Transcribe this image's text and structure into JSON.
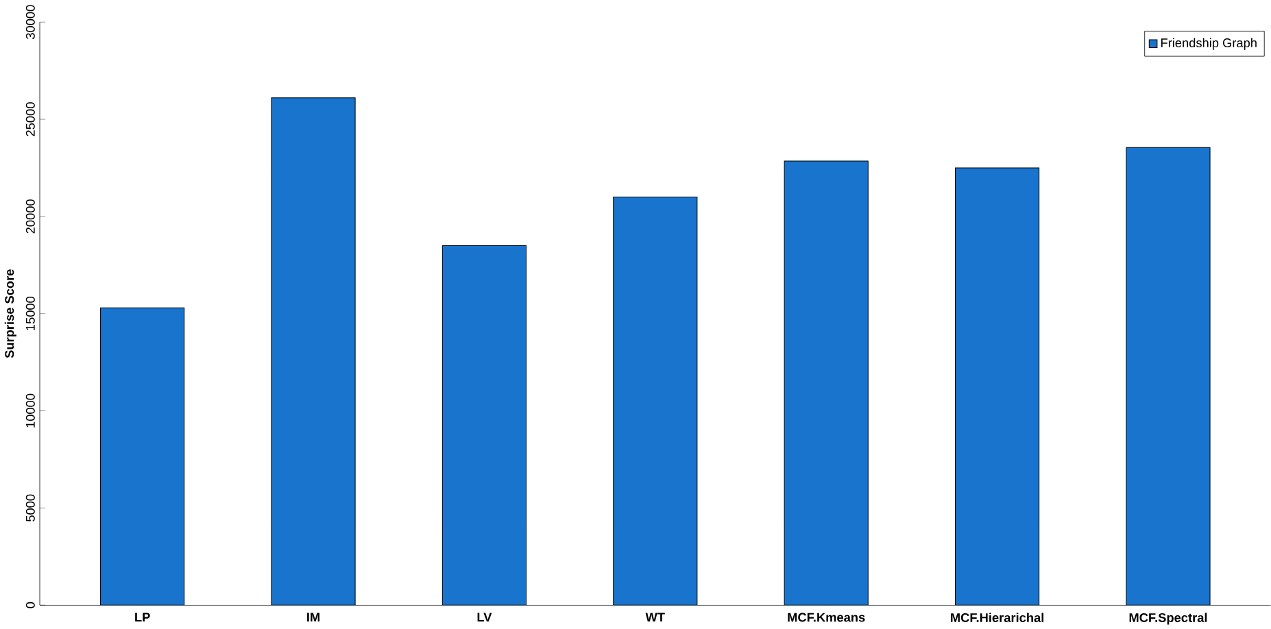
{
  "chart_data": {
    "type": "bar",
    "ylabel": "Surprise Score",
    "categories": [
      "LP",
      "IM",
      "LV",
      "WT",
      "MCF.Kmeans",
      "MCF.Hierarichal",
      "MCF.Spectral"
    ],
    "series": [
      {
        "name": "Friendship Graph",
        "color": "#1874cd",
        "values": [
          15300,
          26100,
          18500,
          21000,
          22850,
          22500,
          23550
        ]
      }
    ],
    "ylim": [
      0,
      30000
    ],
    "yticks": [
      0,
      5000,
      10000,
      15000,
      20000,
      25000,
      30000
    ],
    "grid": false,
    "legend": "top right"
  }
}
